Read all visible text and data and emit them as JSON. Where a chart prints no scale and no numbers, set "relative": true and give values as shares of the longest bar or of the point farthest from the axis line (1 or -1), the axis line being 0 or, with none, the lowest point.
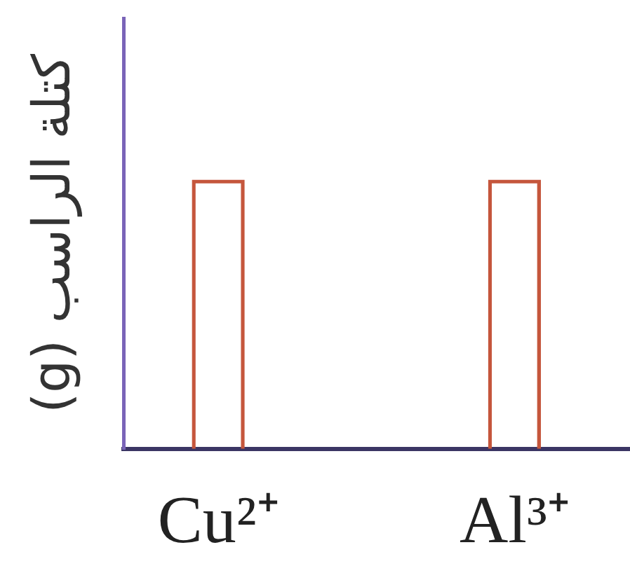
{
  "chart_data": {
    "type": "bar",
    "ylabel": "كتلة الراسب (g)",
    "categories": [
      "Cu²⁺",
      "Al³⁺"
    ],
    "values": [
      1,
      1
    ],
    "color": "#c5563c",
    "relative": true
  }
}
